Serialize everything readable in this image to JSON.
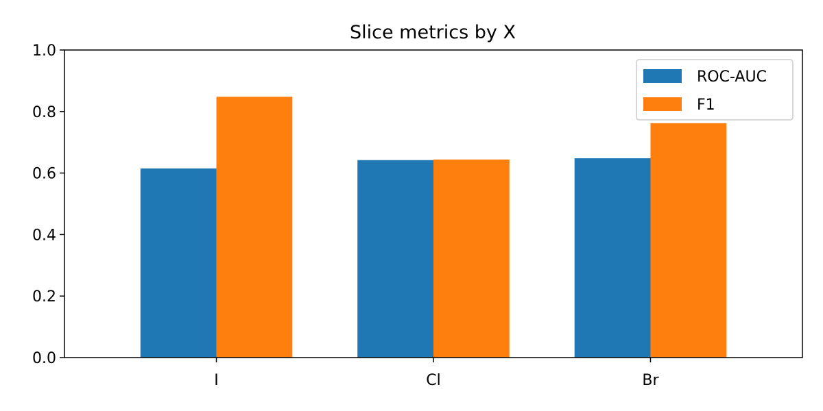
{
  "chart_data": {
    "type": "bar",
    "title": "Slice metrics by X",
    "xlabel": "",
    "ylabel": "",
    "categories": [
      "I",
      "Cl",
      "Br"
    ],
    "series": [
      {
        "name": "ROC-AUC",
        "values": [
          0.615,
          0.642,
          0.648
        ],
        "color": "#1f77b4"
      },
      {
        "name": "F1",
        "values": [
          0.848,
          0.644,
          0.762
        ],
        "color": "#ff7f0e"
      }
    ],
    "ylim": [
      0,
      1.0
    ],
    "yticks": [
      "0.0",
      "0.2",
      "0.4",
      "0.6",
      "0.8",
      "1.0"
    ],
    "grid": false,
    "legend_position": "top-right"
  }
}
